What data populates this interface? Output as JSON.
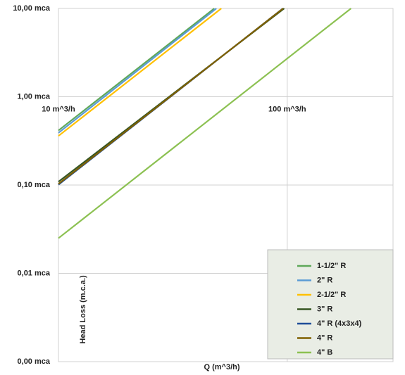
{
  "chart_data": {
    "type": "line",
    "log_x": true,
    "log_y": true,
    "grid": true,
    "x_label": "Q (m^3/h)",
    "y_label": "Head Loss (m.c.a.)",
    "xlim": [
      10,
      290
    ],
    "xticks": [
      {
        "value": 10,
        "label": "10 m^3/h"
      },
      {
        "value": 100,
        "label": "100 m^3/h"
      }
    ],
    "ylim": [
      0.001,
      10
    ],
    "yticks": [
      {
        "value": 0.001,
        "label": "0,00 mca"
      },
      {
        "value": 0.01,
        "label": "0,01 mca"
      },
      {
        "value": 0.1,
        "label": "0,10 mca"
      },
      {
        "value": 1,
        "label": "1,00 mca"
      },
      {
        "value": 10,
        "label": "10,00 mca"
      }
    ],
    "legend": "bottom-right",
    "series": [
      {
        "name": "1-1/2\" R",
        "color": "#5fa85a",
        "x": [
          10,
          48
        ],
        "values": [
          0.415,
          10
        ]
      },
      {
        "name": "2\" R",
        "color": "#5b9bd5",
        "x": [
          10,
          49
        ],
        "values": [
          0.39,
          10
        ]
      },
      {
        "name": "2-1/2\" R",
        "color": "#ffc000",
        "x": [
          10,
          51.5
        ],
        "values": [
          0.36,
          10
        ]
      },
      {
        "name": "3\" R",
        "color": "#375623",
        "x": [
          10,
          97
        ],
        "values": [
          0.109,
          10
        ]
      },
      {
        "name": "4\" R (4x3x4)",
        "color": "#1f4e99",
        "x": [
          10,
          95.8
        ],
        "values": [
          0.101,
          10
        ]
      },
      {
        "name": "4\" R",
        "color": "#7f6000",
        "x": [
          10,
          96
        ],
        "values": [
          0.103,
          10
        ]
      },
      {
        "name": "4\" B",
        "color": "#8cc152",
        "x": [
          10,
          190
        ],
        "values": [
          0.025,
          10
        ]
      }
    ]
  }
}
